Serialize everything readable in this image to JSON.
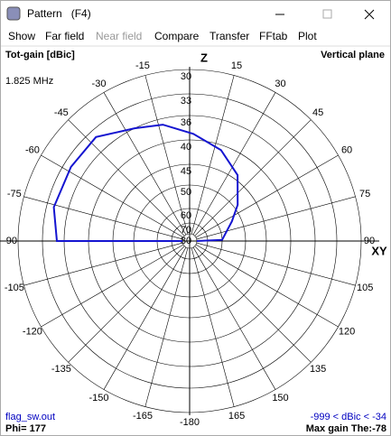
{
  "window": {
    "title": "Pattern   (F4)"
  },
  "menu": [
    "Show",
    "Far field",
    "Near field",
    "Compare",
    "Transfer",
    "FFtab",
    "Plot"
  ],
  "header": {
    "left": "Tot-gain [dBic]",
    "right": "Vertical plane",
    "frequency": "1.825 MHz"
  },
  "footer": {
    "file": "flag_sw.out",
    "phi": "Phi= 177",
    "range": "-999 < dBic < -34",
    "max_gain": "Max gain The:-78"
  },
  "chart_data": {
    "type": "polar",
    "axis_labels": {
      "top": "Z",
      "right": "XY"
    },
    "xticks": [
      -180,
      -165,
      -150,
      -135,
      -120,
      -105,
      -90,
      -75,
      -60,
      -45,
      -30,
      -15,
      15,
      30,
      45,
      60,
      75,
      90,
      105,
      120,
      135,
      150,
      165
    ],
    "ylim": [
      -80,
      -30
    ],
    "yticks": [
      {
        "value": -30,
        "label": "30"
      },
      {
        "value": -33,
        "label": "33"
      },
      {
        "value": -36,
        "label": "36"
      },
      {
        "value": -40,
        "label": "40"
      },
      {
        "value": -45,
        "label": "45"
      },
      {
        "value": -50,
        "label": "50"
      },
      {
        "value": -60,
        "label": "60"
      },
      {
        "value": -70,
        "label": "70"
      },
      {
        "value": -80,
        "label": "80"
      }
    ],
    "series": [
      {
        "color": "#1414d0",
        "x": [
          90,
          88,
          65,
          53,
          36,
          19,
          2,
          -13,
          -26,
          -42,
          -58,
          -76,
          -90,
          -90
        ],
        "values": [
          -80,
          -60,
          -54,
          -49,
          -44,
          -41,
          -39,
          -37,
          -36,
          -34,
          -34,
          -34,
          -35,
          -80
        ]
      }
    ]
  }
}
